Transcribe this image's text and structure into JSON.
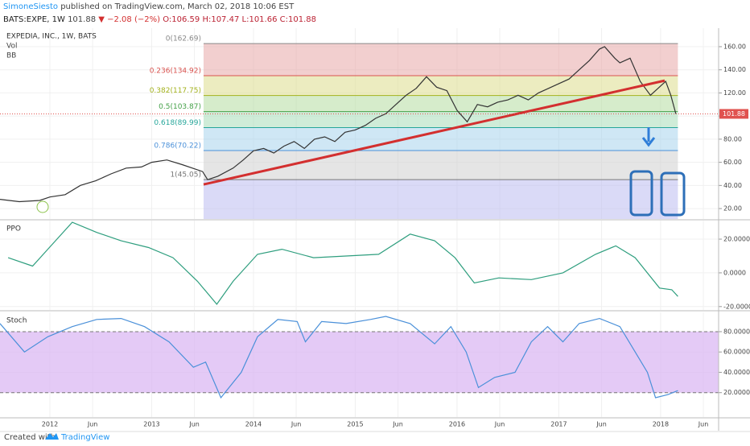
{
  "header": {
    "author": "SimoneSiesto",
    "published": "published on TradingView.com, March 02, 2018 10:06 EST",
    "symbol": "BATS:EXPE, 1W",
    "last": "101.88",
    "change": "▼ −2.08 (−2%)",
    "open": "O:106.59",
    "high": "H:107.47",
    "low": "L:101.66",
    "close": "C:101.88"
  },
  "chart_data": [
    {
      "type": "line",
      "title": "EXPEDIA, INC., 1W, BATS",
      "indicators": [
        "Vol",
        "BB"
      ],
      "x": [
        2011.51,
        2011.7,
        2011.9,
        2012.0,
        2012.15,
        2012.3,
        2012.45,
        2012.6,
        2012.75,
        2012.9,
        2013.0,
        2013.15,
        2013.3,
        2013.4,
        2013.5,
        2013.55,
        2013.65,
        2013.8,
        2013.9,
        2014.0,
        2014.1,
        2014.2,
        2014.3,
        2014.4,
        2014.5,
        2014.6,
        2014.7,
        2014.8,
        2014.9,
        2015.0,
        2015.1,
        2015.2,
        2015.3,
        2015.4,
        2015.5,
        2015.6,
        2015.7,
        2015.8,
        2015.9,
        2016.0,
        2016.1,
        2016.2,
        2016.3,
        2016.4,
        2016.5,
        2016.6,
        2016.7,
        2016.8,
        2016.9,
        2017.0,
        2017.1,
        2017.2,
        2017.3,
        2017.4,
        2017.45,
        2017.55,
        2017.6,
        2017.7,
        2017.8,
        2017.9,
        2018.0,
        2018.05,
        2018.1,
        2018.15
      ],
      "values": [
        28,
        26,
        27,
        30,
        32,
        40,
        44,
        50,
        55,
        56,
        60,
        62,
        58,
        55,
        52,
        45,
        48,
        55,
        62,
        70,
        72,
        68,
        74,
        78,
        72,
        80,
        82,
        78,
        86,
        88,
        92,
        98,
        102,
        110,
        118,
        124,
        134,
        125,
        122,
        105,
        95,
        110,
        108,
        112,
        114,
        118,
        114,
        120,
        124,
        128,
        132,
        140,
        148,
        158,
        160,
        150,
        146,
        150,
        130,
        118,
        126,
        130,
        118,
        101.88
      ],
      "color": "#333333",
      "xlim": [
        2011.51,
        2018.57
      ],
      "ylim": [
        11,
        176
      ],
      "yticks": [
        {
          "value": 20,
          "label": "20.00"
        },
        {
          "value": 40,
          "label": "40.00"
        },
        {
          "value": 60,
          "label": "60.00"
        },
        {
          "value": 80,
          "label": "80.00"
        },
        {
          "value": 100,
          "label": "100.00"
        },
        {
          "value": 120,
          "label": "120.00"
        },
        {
          "value": 140,
          "label": "140.00"
        },
        {
          "value": 160,
          "label": "160.00"
        }
      ],
      "xticks": [
        2012,
        {
          "value": 2012.42,
          "label": "Jun"
        },
        2013,
        {
          "value": 2013.42,
          "label": "Jun"
        },
        2014,
        {
          "value": 2014.42,
          "label": "Jun"
        },
        2015,
        {
          "value": 2015.42,
          "label": "Jun"
        },
        2016,
        {
          "value": 2016.42,
          "label": "Jun"
        },
        2017,
        {
          "value": 2017.42,
          "label": "Jun"
        },
        2018,
        {
          "value": 2018.42,
          "label": "Jun"
        }
      ],
      "fibonacci": {
        "x": [
          2013.51,
          2018.17
        ],
        "levels": [
          {
            "label": "0(162.69)",
            "value": 162.69,
            "color": "#888888"
          },
          {
            "label": "0.236(134.92)",
            "value": 134.92,
            "color": "#d9534f"
          },
          {
            "label": "0.382(117.75)",
            "value": 117.75,
            "color": "#a3b21c"
          },
          {
            "label": "0.5(103.87)",
            "value": 103.87,
            "color": "#43a047"
          },
          {
            "label": "0.618(89.99)",
            "value": 89.99,
            "color": "#26a69a"
          },
          {
            "label": "0.786(70.22)",
            "value": 70.22,
            "color": "#4a90d9"
          },
          {
            "label": "1(45.05)",
            "value": 45.05,
            "color": "#777777"
          }
        ],
        "band_colors": [
          "#e8a8a8",
          "#dcdc8c",
          "#b5dca0",
          "#a8dcb8",
          "#a8d4ec",
          "#cfcfcf",
          "#bcbcf0"
        ]
      },
      "trendline": {
        "x": [
          2013.51,
          2018.04
        ],
        "values": [
          40.9,
          130.7
        ],
        "color": "#d32f2f"
      },
      "last_price": {
        "value": 101.88,
        "label": "101.88",
        "color": "#e0524f"
      }
    },
    {
      "type": "line",
      "title": "PPO",
      "x": [
        2011.59,
        2011.83,
        2011.98,
        2012.22,
        2012.46,
        2012.7,
        2012.97,
        2013.21,
        2013.45,
        2013.64,
        2013.8,
        2014.04,
        2014.28,
        2014.59,
        2014.91,
        2015.23,
        2015.54,
        2015.78,
        2015.98,
        2016.17,
        2016.41,
        2016.73,
        2017.04,
        2017.36,
        2017.56,
        2017.75,
        2017.99,
        2018.11,
        2018.17
      ],
      "values": [
        9,
        4,
        14,
        30,
        24,
        19,
        15,
        9,
        -5,
        -18.6,
        -5,
        11,
        14,
        9,
        10,
        11,
        23,
        19,
        9,
        -6,
        -3,
        -4,
        0,
        11,
        16,
        9,
        -9,
        -10,
        -14
      ],
      "color": "#2e9e7e",
      "ylim": [
        -22,
        31
      ],
      "yticks": [
        {
          "value": -20,
          "label": "-20.0000"
        },
        {
          "value": 0,
          "label": "0.0000"
        },
        {
          "value": 20,
          "label": "20.0000"
        }
      ]
    },
    {
      "type": "line",
      "title": "Stoch",
      "x": [
        2011.51,
        2011.75,
        2011.98,
        2012.22,
        2012.46,
        2012.7,
        2012.93,
        2013.17,
        2013.41,
        2013.53,
        2013.68,
        2013.88,
        2014.04,
        2014.24,
        2014.43,
        2014.51,
        2014.67,
        2014.91,
        2015.15,
        2015.3,
        2015.54,
        2015.78,
        2015.94,
        2016.09,
        2016.21,
        2016.37,
        2016.57,
        2016.73,
        2016.89,
        2017.04,
        2017.2,
        2017.4,
        2017.6,
        2017.75,
        2017.87,
        2017.95,
        2018.07,
        2018.17
      ],
      "values": [
        88,
        60,
        75,
        85,
        92,
        93,
        85,
        70,
        45,
        50,
        15,
        40,
        75,
        92,
        90,
        70,
        90,
        88,
        92,
        95,
        88,
        68,
        85,
        60,
        25,
        35,
        40,
        70,
        85,
        70,
        88,
        93,
        85,
        60,
        40,
        15,
        18,
        22
      ],
      "color": "#4a90d9",
      "ylim": [
        -4,
        99
      ],
      "yticks": [
        {
          "value": 20,
          "label": "20.0000"
        },
        {
          "value": 40,
          "label": "40.0000"
        },
        {
          "value": 60,
          "label": "60.0000"
        },
        {
          "value": 80,
          "label": "80.0000"
        }
      ],
      "band": [
        20,
        80
      ],
      "band_color": "#d9b3f2"
    }
  ],
  "footer": {
    "created": "Created with",
    "brand": "TradingView"
  }
}
